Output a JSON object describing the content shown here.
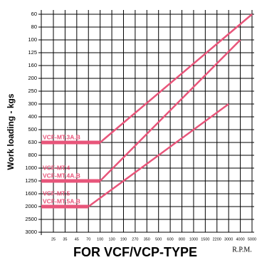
{
  "chart_data": {
    "type": "line",
    "ylabel": "Work loading - kgs",
    "xlabel": "FOR VCF/VCP-TYPE",
    "xunit": "R.P.M.",
    "yticks": [
      60,
      80,
      100,
      125,
      160,
      200,
      250,
      300,
      400,
      500,
      630,
      800,
      1000,
      1250,
      1600,
      2000,
      2500,
      3000
    ],
    "xticks": [
      25,
      35,
      45,
      70,
      100,
      130,
      190,
      270,
      350,
      500,
      600,
      800,
      1000,
      1500,
      2200,
      3000,
      4000,
      5000
    ],
    "grid": true,
    "color": "#e8557a",
    "series": [
      {
        "labels": [
          "VCF-MT.3A.B"
        ],
        "x": [
          100,
          5000
        ],
        "values": [
          630,
          60
        ]
      },
      {
        "labels": [
          "VCF-MT.4",
          "VCF-MT.4A.B"
        ],
        "x": [
          100,
          4000
        ],
        "values": [
          1250,
          100
        ]
      },
      {
        "labels": [
          "VCF-MT.5",
          "VCF-MT.5A.B"
        ],
        "x": [
          70,
          3000
        ],
        "values": [
          2000,
          300
        ]
      }
    ]
  }
}
